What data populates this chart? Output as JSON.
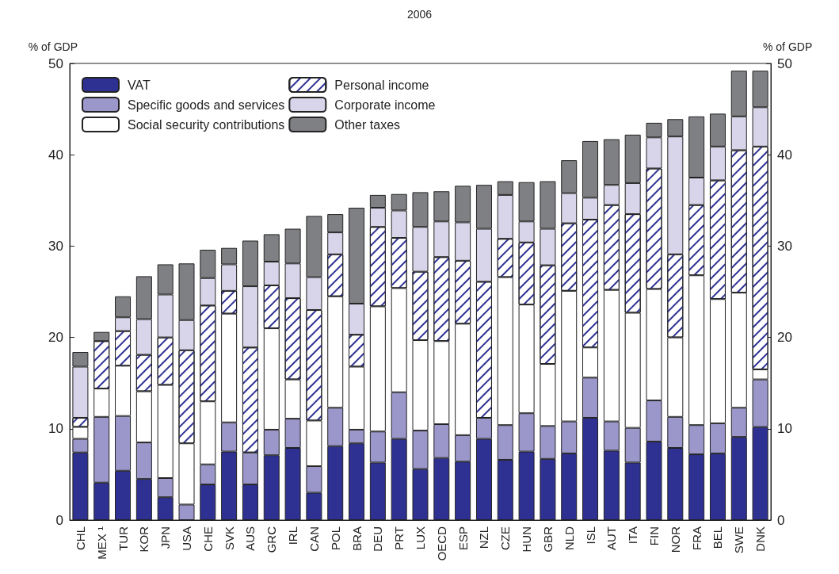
{
  "chart_data": {
    "type": "bar",
    "title": "2006",
    "ylabel": "% of GDP",
    "y2label": "% of GDP",
    "stacked": true,
    "legend": "top left",
    "categories": [
      "CHL",
      "MEX ¹",
      "TUR",
      "KOR",
      "JPN",
      "USA",
      "CHE",
      "SVK",
      "AUS",
      "GRC",
      "IRL",
      "CAN",
      "POL",
      "BRA",
      "DEU",
      "PRT",
      "LUX",
      "OECD",
      "ESP",
      "NZL",
      "CZE",
      "HUN",
      "GBR",
      "NLD",
      "ISL",
      "AUT",
      "ITA",
      "FIN",
      "NOR",
      "FRA",
      "BEL",
      "SWE",
      "DNK"
    ],
    "series": [
      {
        "name": "VAT",
        "color": "#2e3192",
        "values": [
          7.4,
          4.1,
          5.4,
          4.5,
          2.5,
          0,
          3.9,
          7.5,
          3.9,
          7.1,
          7.9,
          3.0,
          8.1,
          8.4,
          6.3,
          8.9,
          5.6,
          6.8,
          6.4,
          8.9,
          6.6,
          7.5,
          6.7,
          7.3,
          11.2,
          7.6,
          6.3,
          8.6,
          7.9,
          7.2,
          7.3,
          9.1,
          10.2
        ]
      },
      {
        "name": "Specific goods and services",
        "color": "#9b97cb",
        "values": [
          1.5,
          7.2,
          6.0,
          4.0,
          2.1,
          1.7,
          2.2,
          3.2,
          3.5,
          2.8,
          3.2,
          2.9,
          4.2,
          1.5,
          3.4,
          5.1,
          4.2,
          3.7,
          2.9,
          2.3,
          3.8,
          4.2,
          3.6,
          3.5,
          4.4,
          3.2,
          3.8,
          4.5,
          3.4,
          3.2,
          3.3,
          3.2,
          5.2
        ]
      },
      {
        "name": "Social security contributions",
        "color": "#ffffff",
        "values": [
          1.3,
          3.1,
          5.5,
          5.6,
          10.2,
          6.7,
          6.9,
          11.9,
          0,
          11.1,
          4.3,
          5.0,
          12.2,
          6.9,
          13.7,
          11.4,
          9.9,
          9.1,
          12.2,
          0,
          16.2,
          11.9,
          6.8,
          14.3,
          3.3,
          14.4,
          12.6,
          12.2,
          8.7,
          16.4,
          13.6,
          12.6,
          1.1
        ]
      },
      {
        "name": "Personal income",
        "color": "#ffffff",
        "values": [
          1.0,
          5.2,
          3.8,
          4.0,
          5.2,
          10.2,
          10.5,
          2.5,
          11.5,
          4.7,
          8.9,
          12.1,
          4.6,
          3.5,
          8.7,
          5.5,
          7.5,
          9.2,
          6.9,
          14.9,
          4.2,
          6.8,
          10.8,
          7.4,
          14.0,
          9.3,
          10.8,
          13.2,
          9.1,
          7.7,
          13.0,
          15.6,
          24.4
        ]
      },
      {
        "name": "Corporate income",
        "color": "#d8d5ea",
        "values": [
          5.6,
          0,
          1.5,
          3.9,
          4.7,
          3.3,
          3.0,
          2.9,
          6.7,
          2.6,
          3.8,
          3.6,
          2.4,
          3.4,
          2.1,
          3.0,
          4.9,
          3.9,
          4.2,
          5.8,
          4.8,
          2.3,
          4.0,
          3.3,
          2.4,
          2.2,
          3.4,
          3.4,
          12.9,
          3.0,
          3.7,
          3.7,
          4.3
        ]
      },
      {
        "name": "Other taxes",
        "color": "#7f8083",
        "values": [
          1.6,
          1.0,
          2.3,
          4.7,
          3.3,
          6.2,
          3.1,
          1.8,
          5.0,
          3.0,
          3.8,
          6.7,
          2.0,
          10.5,
          1.4,
          1.8,
          3.8,
          3.3,
          4.0,
          4.8,
          1.5,
          4.3,
          5.2,
          3.6,
          6.2,
          5.0,
          5.3,
          1.6,
          1.9,
          6.7,
          3.6,
          5.0,
          4.0
        ]
      }
    ],
    "ylim": [
      0,
      50
    ],
    "yticks": [
      0,
      10,
      20,
      30,
      40,
      50
    ],
    "y2lim": [
      0,
      50
    ],
    "y2ticks": [
      0,
      10,
      20,
      30,
      40,
      50
    ]
  }
}
